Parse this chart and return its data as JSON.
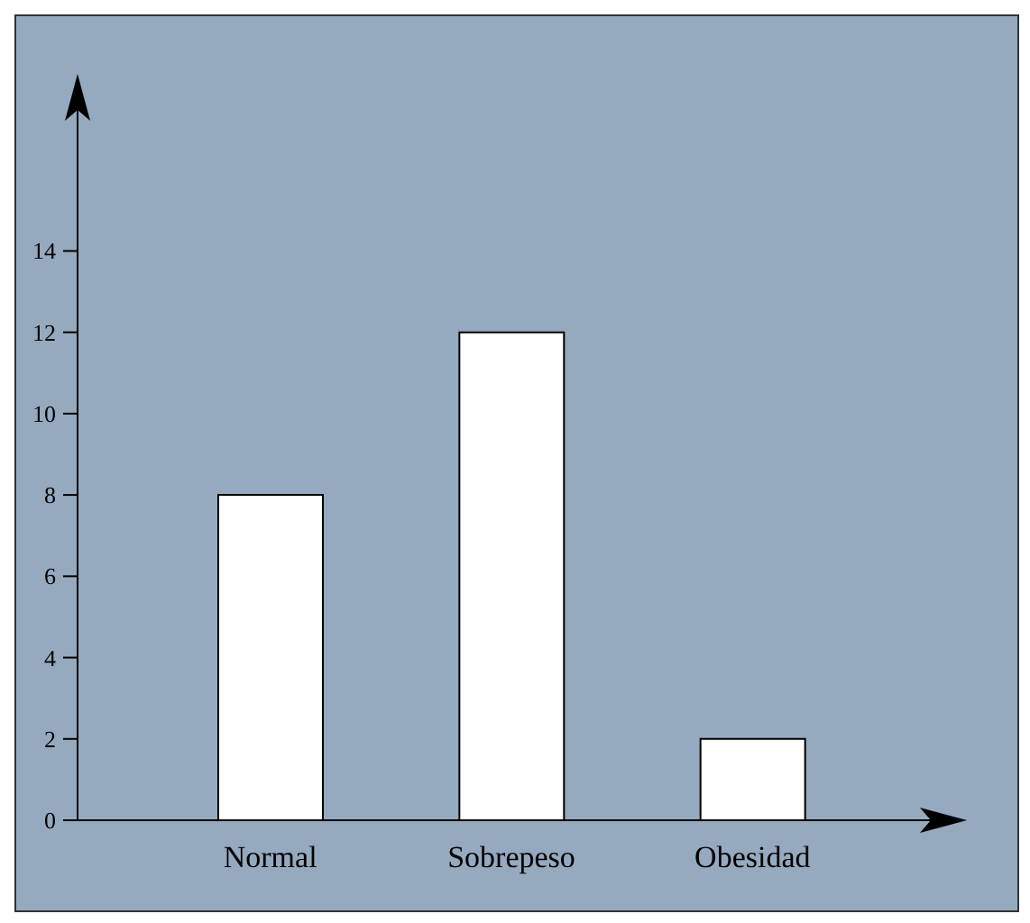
{
  "chart_data": {
    "type": "bar",
    "categories": [
      "Normal",
      "Sobrepeso",
      "Obesidad"
    ],
    "values": [
      8,
      12,
      2
    ],
    "color": "#ffffff",
    "ylim": [
      0,
      18
    ],
    "yticks": [
      0,
      2,
      4,
      6,
      8,
      10,
      12,
      14
    ],
    "grid": false,
    "legend": false
  }
}
